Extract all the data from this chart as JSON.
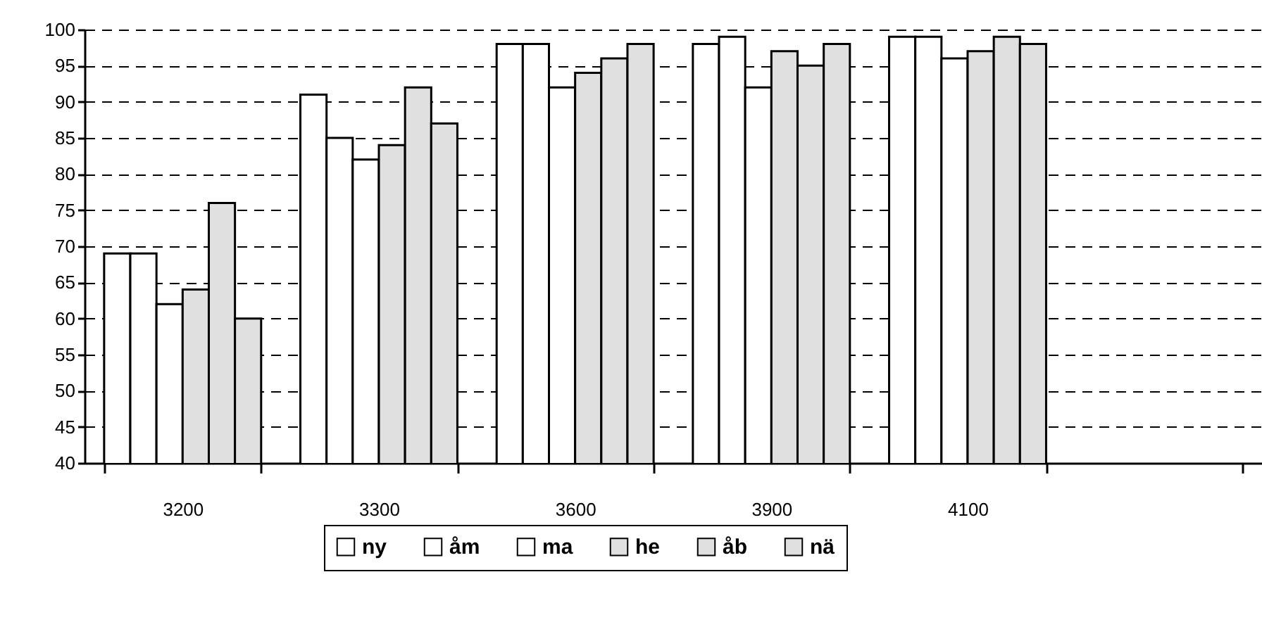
{
  "chart_data": {
    "type": "bar",
    "categories": [
      "3200",
      "3300",
      "3600",
      "3900",
      "4100",
      null
    ],
    "series": [
      {
        "name": "ny",
        "color": "#ffffff",
        "values": [
          69,
          91,
          98,
          98,
          99,
          null
        ]
      },
      {
        "name": "åm",
        "color": "#ffffff",
        "values": [
          69,
          85,
          98,
          99,
          99,
          null
        ]
      },
      {
        "name": "ma",
        "color": "#ffffff",
        "values": [
          62,
          82,
          92,
          92,
          96,
          null
        ]
      },
      {
        "name": "he",
        "color": "#e0e0e0",
        "values": [
          64,
          84,
          94,
          97,
          97,
          null
        ]
      },
      {
        "name": "åb",
        "color": "#e0e0e0",
        "values": [
          76,
          92,
          96,
          95,
          99,
          null
        ]
      },
      {
        "name": "nä",
        "color": "#e0e0e0",
        "values": [
          60,
          87,
          98,
          98,
          98,
          null
        ]
      }
    ],
    "ylim": [
      40,
      100
    ],
    "yticks": [
      40,
      45,
      50,
      55,
      60,
      65,
      70,
      75,
      80,
      85,
      90,
      95,
      100
    ],
    "grid": "y",
    "legend": "bottom"
  }
}
